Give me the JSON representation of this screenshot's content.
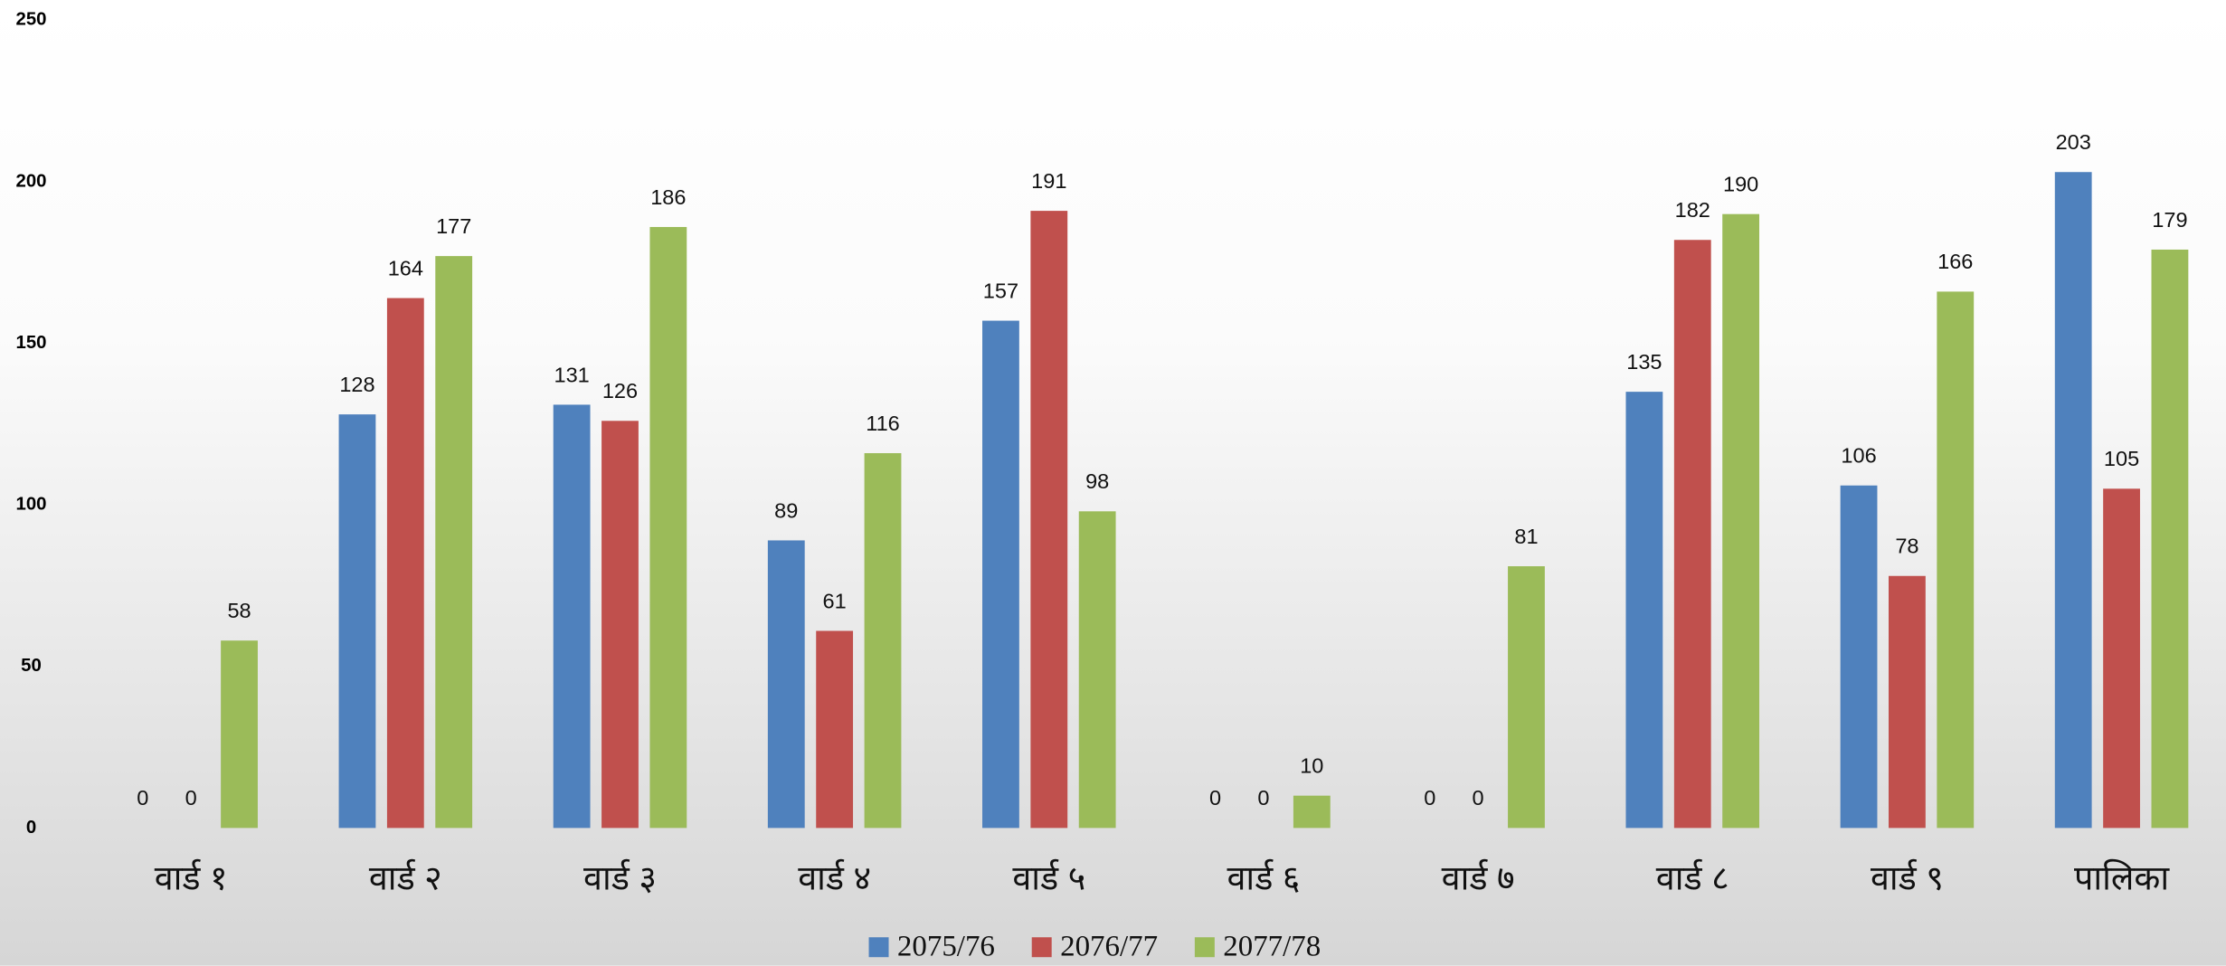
{
  "chart_data": {
    "type": "bar",
    "categories": [
      "वार्ड १",
      "वार्ड २",
      "वार्ड ३",
      "वार्ड ४",
      "वार्ड ५",
      "वार्ड ६",
      "वार्ड ७",
      "वार्ड ८",
      "वार्ड ९",
      "पालिका"
    ],
    "series": [
      {
        "name": "2075/76",
        "color": "#4f81bd",
        "values": [
          0,
          128,
          131,
          89,
          157,
          0,
          0,
          135,
          106,
          203
        ]
      },
      {
        "name": "2076/77",
        "color": "#c0504d",
        "values": [
          0,
          164,
          126,
          61,
          191,
          0,
          0,
          182,
          78,
          105
        ]
      },
      {
        "name": "2077/78",
        "color": "#9bbb59",
        "values": [
          58,
          177,
          186,
          116,
          98,
          10,
          81,
          190,
          166,
          179
        ]
      }
    ],
    "ylim": [
      0,
      250
    ],
    "yticks": [
      0,
      50,
      100,
      150,
      200,
      250
    ],
    "grid": false,
    "legend": "bottom"
  }
}
